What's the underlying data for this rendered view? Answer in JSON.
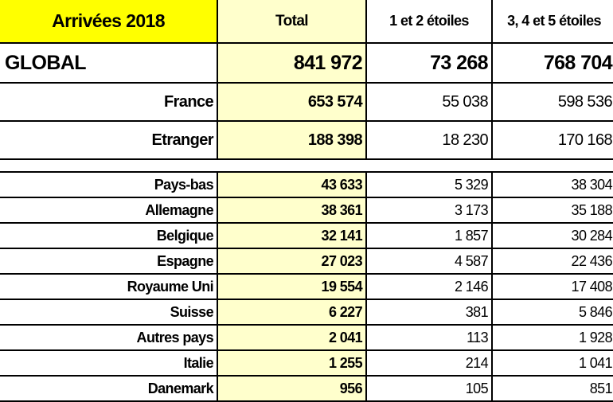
{
  "header": {
    "title": "Arrivées 2018",
    "total": "Total",
    "col_1_2": "1 et 2 étoiles",
    "col_3_4_5": "3, 4 et 5 étoiles"
  },
  "global": {
    "label": "GLOBAL",
    "total": "841 972",
    "s12": "73 268",
    "s345": "768 704"
  },
  "summary": [
    {
      "label": "France",
      "total": "653 574",
      "s12": "55 038",
      "s345": "598 536"
    },
    {
      "label": "Etranger",
      "total": "188 398",
      "s12": "18 230",
      "s345": "170 168"
    }
  ],
  "countries": [
    {
      "label": "Pays-bas",
      "total": "43 633",
      "s12": "5 329",
      "s345": "38 304"
    },
    {
      "label": "Allemagne",
      "total": "38 361",
      "s12": "3 173",
      "s345": "35 188"
    },
    {
      "label": "Belgique",
      "total": "32 141",
      "s12": "1 857",
      "s345": "30 284"
    },
    {
      "label": "Espagne",
      "total": "27 023",
      "s12": "4 587",
      "s345": "22 436"
    },
    {
      "label": "Royaume Uni",
      "total": "19 554",
      "s12": "2 146",
      "s345": "17 408"
    },
    {
      "label": "Suisse",
      "total": "6 227",
      "s12": "381",
      "s345": "5 846"
    },
    {
      "label": "Autres pays",
      "total": "2 041",
      "s12": "113",
      "s345": "1 928"
    },
    {
      "label": "Italie",
      "total": "1 255",
      "s12": "214",
      "s345": "1 041"
    },
    {
      "label": "Danemark",
      "total": "956",
      "s12": "105",
      "s345": "851"
    }
  ],
  "colors": {
    "title_bg": "#FFFF00",
    "total_bg": "#FFFFCC"
  }
}
